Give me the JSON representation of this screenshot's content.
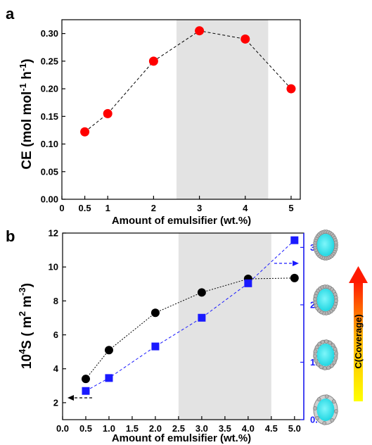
{
  "chart_data": [
    {
      "panel_label": "a",
      "type": "scatter",
      "xlabel": "Amount of emulsifier (wt.%)",
      "ylabel": "CE (mol mol",
      "ylabel_sup1": "-1",
      "ylabel_mid": " h",
      "ylabel_sup2": "-1",
      "ylabel_end": ")",
      "xlim": [
        0,
        5.2
      ],
      "ylim": [
        0,
        0.325
      ],
      "x_ticks": [
        "0",
        "0.5",
        "1",
        "2",
        "3",
        "4",
        "5"
      ],
      "y_ticks": [
        "0.00",
        "0.05",
        "0.10",
        "0.15",
        "0.20",
        "0.25",
        "0.30"
      ],
      "shaded_region": [
        2.5,
        4.5
      ],
      "series": [
        {
          "marker": "circle",
          "line": "dashed",
          "color": "#ff0000",
          "x": [
            0.5,
            1,
            2,
            3,
            4,
            5
          ],
          "y": [
            0.122,
            0.155,
            0.25,
            0.305,
            0.29,
            0.2
          ]
        }
      ]
    },
    {
      "panel_label": "b",
      "type": "scatter",
      "xlabel": "Amount of emulsifier (wt.%)",
      "ylabel_left": "10",
      "ylabel_left_sup": "4",
      "ylabel_left_rest": "S ( m",
      "ylabel_left_sup2": "2",
      "ylabel_left_rest2": " m",
      "ylabel_left_sup3": "-3",
      "ylabel_left_end": ")",
      "ylabel_right": "C(Coverage)",
      "xlim": [
        0,
        5.2
      ],
      "ylim_left": [
        1,
        12
      ],
      "ylim_right": [
        0.8,
        3.4
      ],
      "x_ticks": [
        "0.0",
        "0.5",
        "1.0",
        "1.5",
        "2.0",
        "2.5",
        "3.0",
        "3.5",
        "4.0",
        "4.5",
        "5.0"
      ],
      "y_ticks_left": [
        "2",
        "4",
        "6",
        "8",
        "10",
        "12"
      ],
      "y_ticks_right": [
        "0.8",
        "1.6",
        "2.4",
        "3.2"
      ],
      "shaded_region": [
        2.5,
        4.5
      ],
      "series": [
        {
          "axis": "left",
          "marker": "circle",
          "line": "dotted",
          "color": "#000000",
          "x": [
            0.5,
            1,
            2,
            3,
            4,
            5
          ],
          "y": [
            3.4,
            5.1,
            7.3,
            8.5,
            9.3,
            9.35
          ]
        },
        {
          "axis": "right",
          "marker": "square",
          "line": "dashed",
          "color": "#1a1aff",
          "x": [
            0.5,
            1,
            2,
            3,
            4,
            5
          ],
          "y": [
            1.2,
            1.38,
            1.82,
            2.22,
            2.7,
            3.3
          ]
        }
      ],
      "colors": {
        "shade": "#e3e3e3",
        "right_axis": "#1a1aff",
        "gradient_top": "#ff1a00",
        "gradient_bottom": "#ffff00",
        "droplet": "#33e0e8"
      }
    }
  ]
}
